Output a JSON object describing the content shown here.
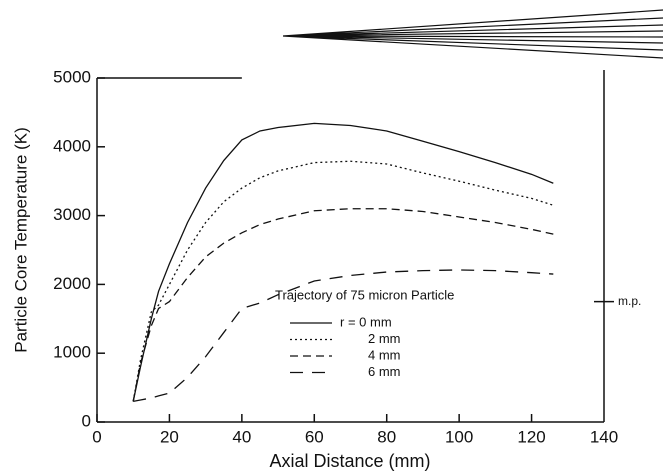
{
  "chart_data": {
    "type": "line",
    "x_label": "Axial Distance (mm)",
    "y_label": "Particle Core Temperature (K)",
    "legend_title": "Trajectory of 75 micron Particle",
    "x": [
      10,
      12,
      15,
      17,
      20,
      25,
      30,
      35,
      40,
      45,
      50,
      60,
      70,
      80,
      90,
      100,
      110,
      120,
      126
    ],
    "series": [
      {
        "name": "r = 0 mm",
        "color": "#111111",
        "dash": "solid",
        "values": [
          300,
          800,
          1500,
          1900,
          2300,
          2900,
          3400,
          3800,
          4100,
          4230,
          4280,
          4340,
          4310,
          4230,
          4080,
          3930,
          3770,
          3600,
          3470
        ]
      },
      {
        "name": "2 mm",
        "color": "#111111",
        "dash": "dotted",
        "values": [
          300,
          900,
          1600,
          1700,
          2000,
          2500,
          2900,
          3200,
          3400,
          3550,
          3650,
          3770,
          3790,
          3750,
          3620,
          3500,
          3370,
          3250,
          3150
        ]
      },
      {
        "name": "4 mm",
        "color": "#111111",
        "dash": "dashed",
        "values": [
          300,
          850,
          1400,
          1650,
          1750,
          2100,
          2400,
          2600,
          2750,
          2870,
          2950,
          3070,
          3100,
          3100,
          3060,
          2980,
          2900,
          2800,
          2730
        ]
      },
      {
        "name": "6 mm",
        "color": "#111111",
        "dash": "longdash",
        "values": [
          300,
          320,
          350,
          380,
          420,
          650,
          950,
          1300,
          1650,
          1730,
          1850,
          2050,
          2130,
          2180,
          2200,
          2210,
          2200,
          2170,
          2150
        ]
      }
    ],
    "annotation": {
      "label": "m.p.",
      "value": 1750
    },
    "xlim": [
      0,
      140
    ],
    "xticks": [
      0,
      20,
      40,
      60,
      80,
      100,
      120,
      140
    ],
    "ylim": [
      0,
      5000
    ],
    "yticks": [
      0,
      1000,
      2000,
      3000,
      4000,
      5000
    ]
  }
}
